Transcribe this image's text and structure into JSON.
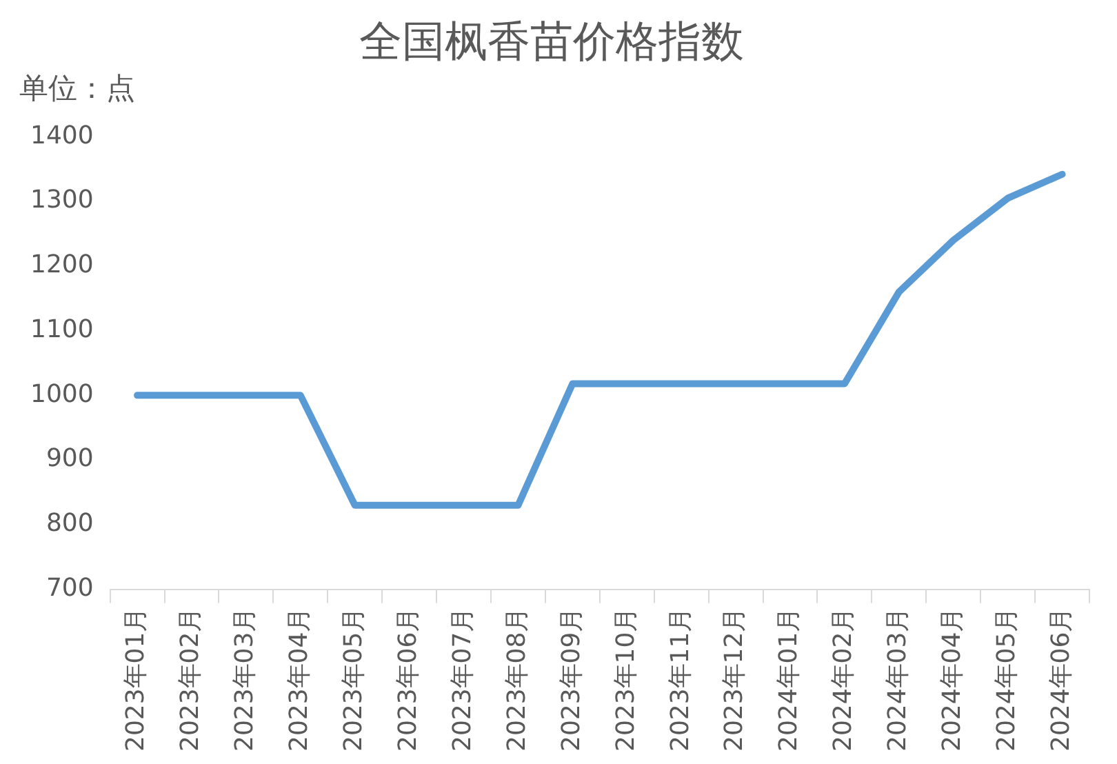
{
  "chart_data": {
    "type": "line",
    "title": "全国枫香苗价格指数",
    "ylabel": "单位：点",
    "categories": [
      "2023年01月",
      "2023年02月",
      "2023年03月",
      "2023年04月",
      "2023年05月",
      "2023年06月",
      "2023年07月",
      "2023年08月",
      "2023年09月",
      "2023年10月",
      "2023年11月",
      "2023年12月",
      "2024年01月",
      "2024年02月",
      "2024年03月",
      "2024年04月",
      "2024年05月",
      "2024年06月"
    ],
    "series": [
      {
        "color": "#5b9bd5",
        "values": [
          1000,
          1000,
          1000,
          1000,
          830,
          830,
          830,
          830,
          1018,
          1018,
          1018,
          1018,
          1018,
          1018,
          1160,
          1240,
          1305,
          1342
        ]
      }
    ],
    "ylim": [
      700,
      1400
    ],
    "yticks": [
      700,
      800,
      900,
      1000,
      1100,
      1200,
      1300,
      1400
    ],
    "grid": false,
    "legend": false,
    "marker": "none",
    "line_style": "solid"
  }
}
